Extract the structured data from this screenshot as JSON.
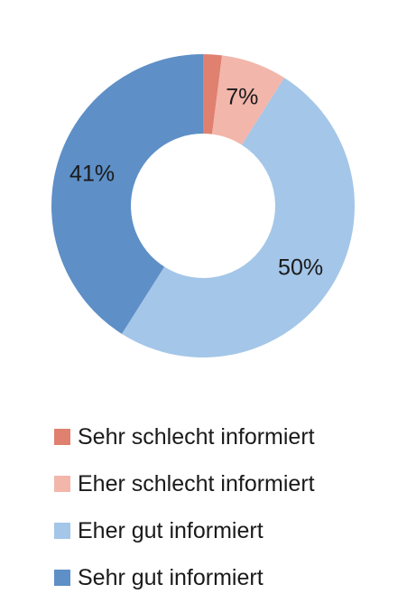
{
  "chart_data": {
    "type": "pie",
    "variant": "donut",
    "categories": [
      "Sehr schlecht informiert",
      "Eher schlecht informiert",
      "Eher gut informiert",
      "Sehr gut informiert"
    ],
    "values": [
      2,
      7,
      50,
      41
    ],
    "data_labels": [
      "",
      "7%",
      "50%",
      "41%"
    ],
    "colors": [
      "#e0806f",
      "#f2b6ab",
      "#a4c6e8",
      "#5e8fc7"
    ],
    "legend_placement": "bottom"
  }
}
